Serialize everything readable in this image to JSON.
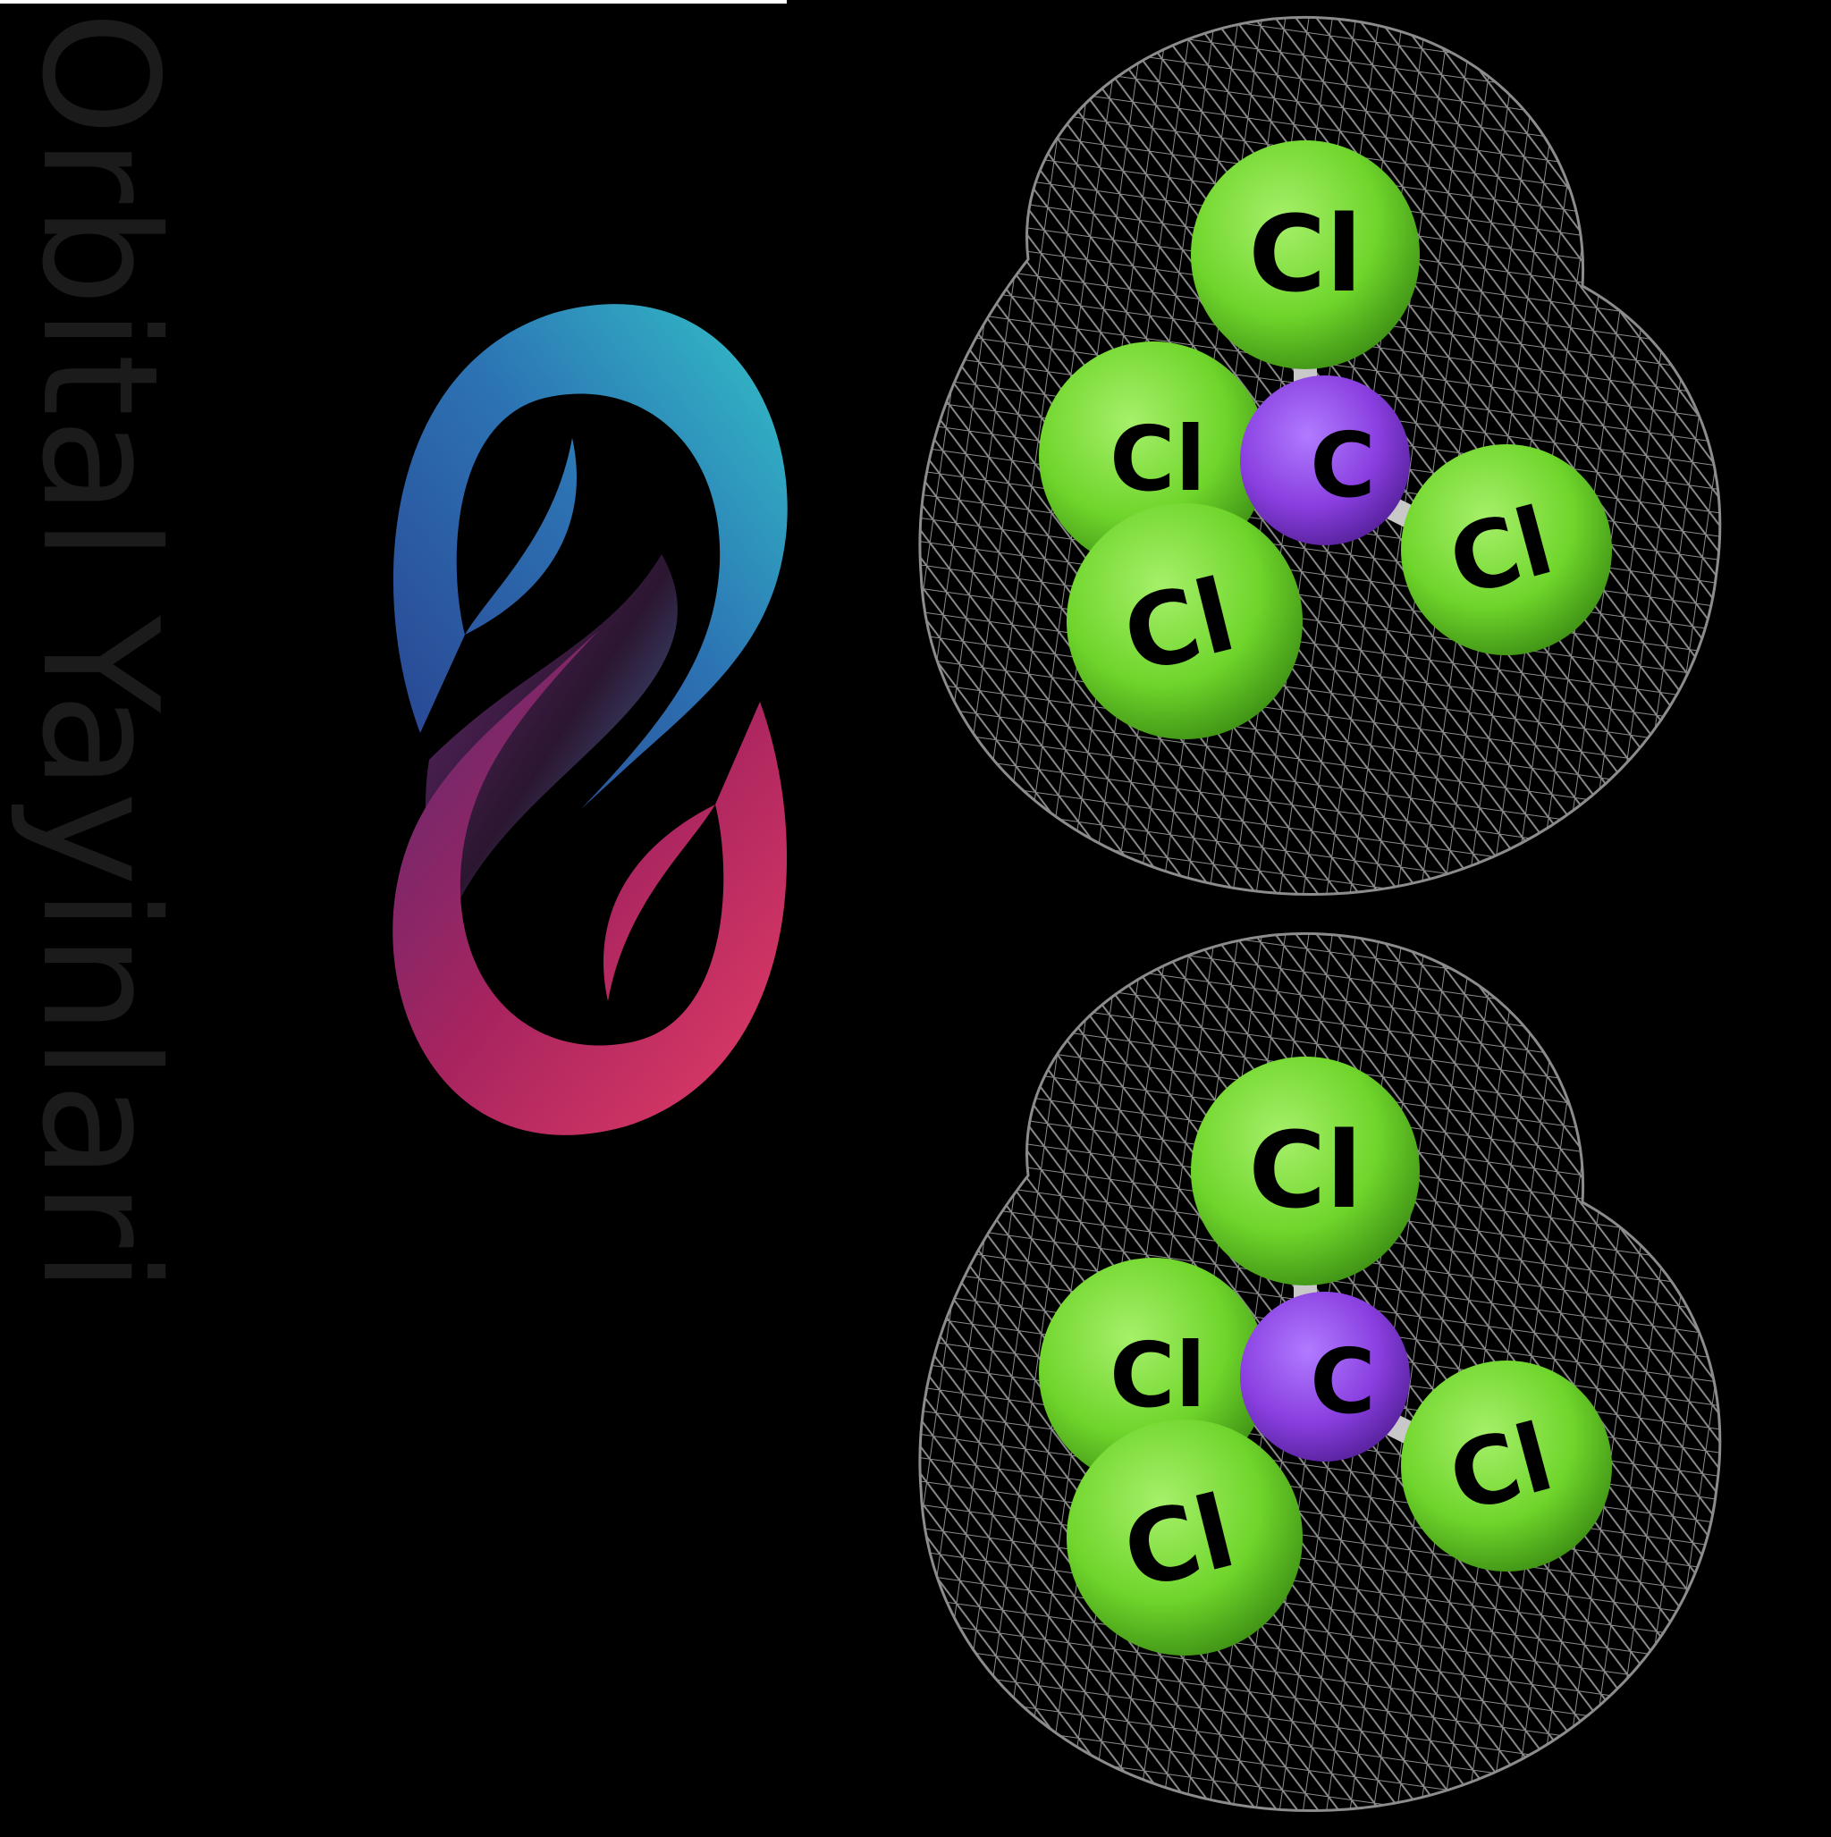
{
  "brand": {
    "name": "Orbital Yayinlari",
    "text_color": "#1b1b1b",
    "logo_icon": "orbital-infinity-logo-icon",
    "logo_colors": {
      "teal": "#2bb5c2",
      "blue": "#2a3f8e",
      "purple": "#6a2a73",
      "magenta": "#b0245f",
      "pink": "#e13b66"
    }
  },
  "molecules": [
    {
      "atoms": {
        "top": "Cl",
        "left": "Cl",
        "center": "C",
        "front": "Cl",
        "right": "Cl"
      }
    },
    {
      "atoms": {
        "top": "Cl",
        "left": "Cl",
        "center": "C",
        "front": "Cl",
        "right": "Cl"
      }
    }
  ],
  "colors": {
    "background": "#000000",
    "chlorine": "#6fd52b",
    "carbon": "#8a3fe0",
    "mesh": "#8c8c8c",
    "bond": "#c8c8c8"
  }
}
